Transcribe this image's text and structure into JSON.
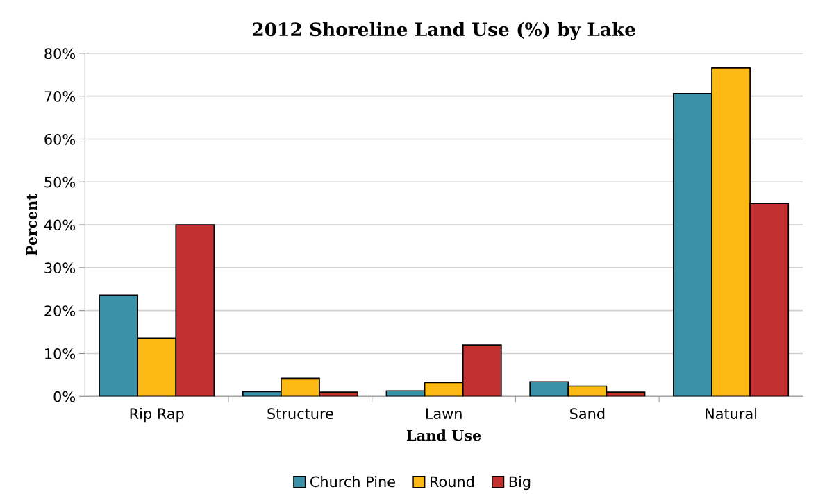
{
  "chart_data": {
    "type": "bar",
    "title": "2012 Shoreline Land Use (%) by Lake",
    "xlabel": "Land Use",
    "ylabel": "Percent",
    "categories": [
      "Rip Rap",
      "Structure",
      "Lawn",
      "Sand",
      "Natural"
    ],
    "series": [
      {
        "name": "Church Pine",
        "color": "#3a91a8",
        "values": [
          23.6,
          1.1,
          1.3,
          3.4,
          70.6
        ]
      },
      {
        "name": "Round",
        "color": "#fdb913",
        "values": [
          13.6,
          4.2,
          3.2,
          2.4,
          76.6
        ]
      },
      {
        "name": "Big",
        "color": "#c33030",
        "values": [
          40.0,
          1.0,
          12.0,
          1.0,
          45.0
        ]
      }
    ],
    "ylim": [
      0,
      80
    ],
    "yticks": [
      {
        "value": 0,
        "label": "0%"
      },
      {
        "value": 10,
        "label": "10%"
      },
      {
        "value": 20,
        "label": "20%"
      },
      {
        "value": 30,
        "label": "30%"
      },
      {
        "value": 40,
        "label": "40%"
      },
      {
        "value": 50,
        "label": "50%"
      },
      {
        "value": 60,
        "label": "60%"
      },
      {
        "value": 70,
        "label": "70%"
      },
      {
        "value": 80,
        "label": "80%"
      }
    ],
    "grid": "y",
    "legend": "bottom"
  }
}
